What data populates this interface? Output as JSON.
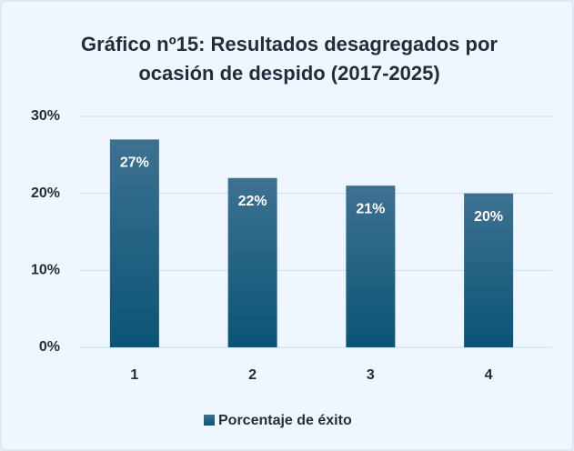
{
  "chart_data": {
    "type": "bar",
    "title": "Gráfico nº15: Resultados desagregados por ocasión de despido (2017-2025)",
    "categories": [
      "1",
      "2",
      "3",
      "4"
    ],
    "series": [
      {
        "name": "Porcentaje de éxito",
        "color": "#1b5f82",
        "values": [
          27,
          22,
          21,
          20
        ],
        "value_labels": [
          "27%",
          "22%",
          "21%",
          "20%"
        ]
      }
    ],
    "ylim": [
      0,
      30
    ],
    "yticks": [
      {
        "value": 0,
        "label": "0%"
      },
      {
        "value": 10,
        "label": "10%"
      },
      {
        "value": 20,
        "label": "20%"
      },
      {
        "value": 30,
        "label": "30%"
      }
    ],
    "grid": true,
    "legend": "bottom"
  }
}
